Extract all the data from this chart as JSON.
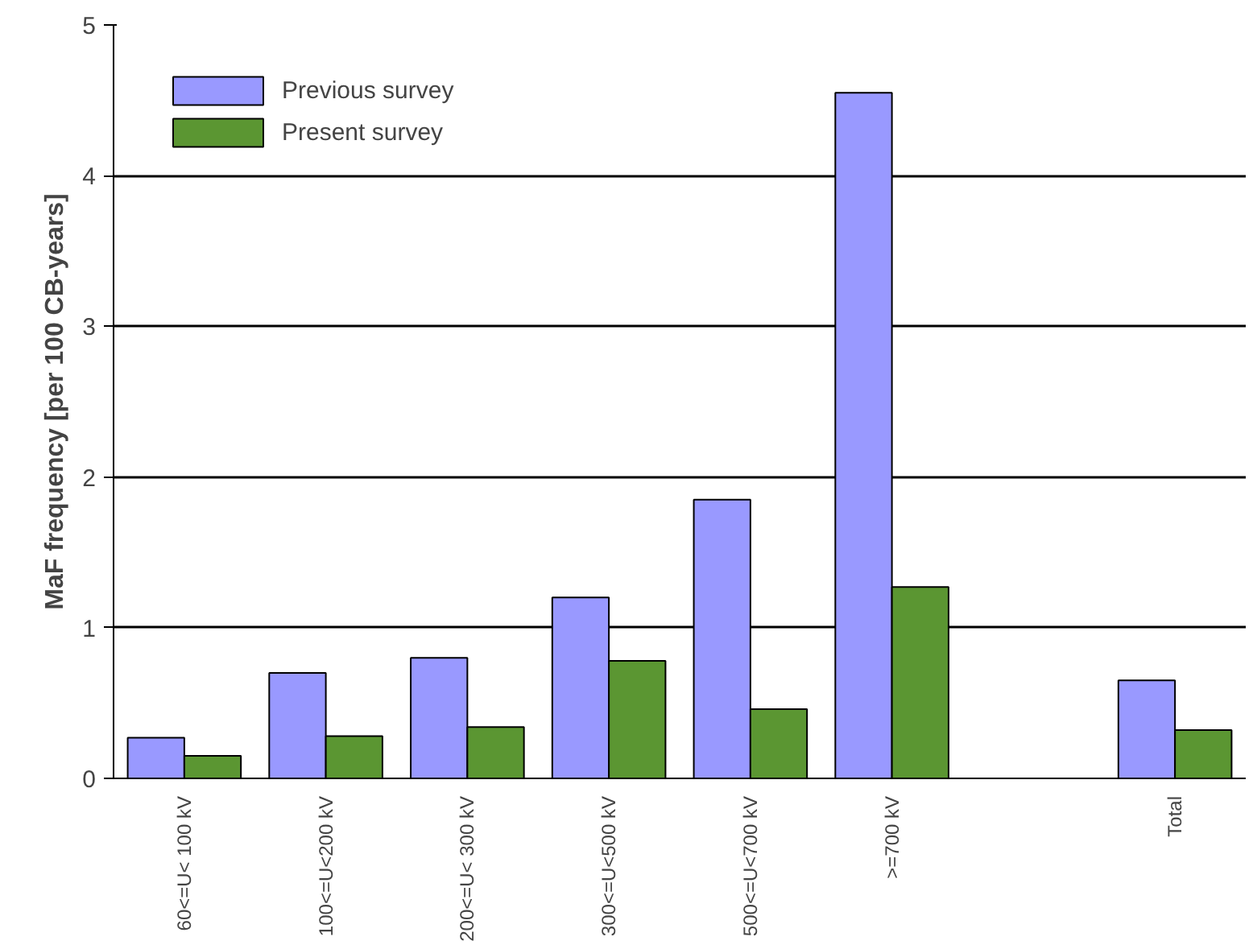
{
  "chart_data": {
    "type": "bar",
    "ylabel": "MaF frequency [per 100 CB-years]",
    "categories": [
      "60<=U< 100 kV",
      "100<=U<200 kV",
      "200<=U< 300 kV",
      "300<=U<500 kV",
      "500<=U<700 kV",
      ">=700 kV",
      null,
      "Total"
    ],
    "series": [
      {
        "name": "Previous survey",
        "color": "#9999ff",
        "values": [
          0.27,
          0.7,
          0.8,
          1.2,
          1.85,
          4.55,
          null,
          0.65
        ]
      },
      {
        "name": "Present survey",
        "color": "#5b9632",
        "values": [
          0.15,
          0.28,
          0.34,
          0.78,
          0.46,
          1.27,
          null,
          0.32
        ]
      }
    ],
    "ylim": [
      0,
      5
    ],
    "yticks": [
      0,
      1,
      2,
      3,
      4,
      5
    ],
    "grid": "y",
    "legend": "top left"
  }
}
